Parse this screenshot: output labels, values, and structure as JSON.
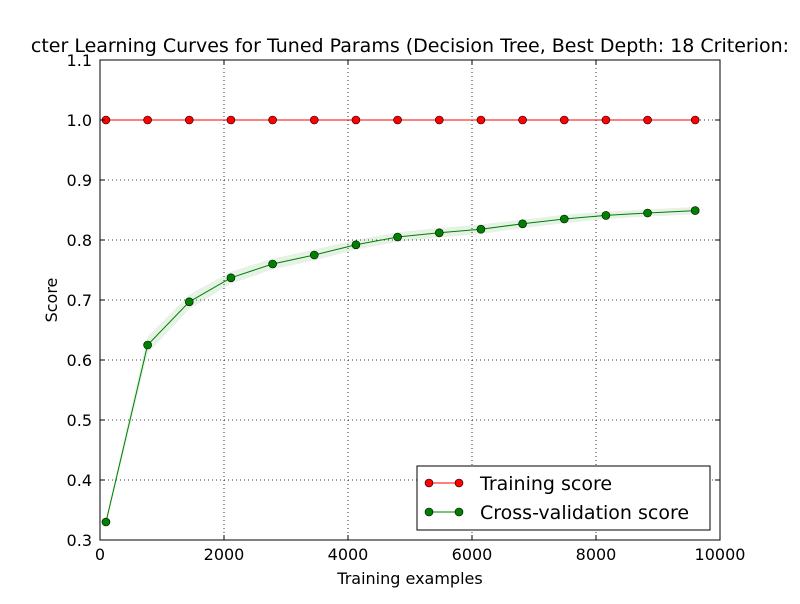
{
  "chart_data": {
    "type": "line",
    "title": "cter Learning Curves for Tuned Params (Decision Tree, Best Depth: 18 Criterion:",
    "xlabel": "Training examples",
    "ylabel": "Score",
    "xlim": [
      0,
      10000
    ],
    "ylim": [
      0.3,
      1.1
    ],
    "x_ticks": [
      "0",
      "2000",
      "4000",
      "6000",
      "8000",
      "10000"
    ],
    "y_ticks": [
      "0.3",
      "0.4",
      "0.5",
      "0.6",
      "0.7",
      "0.8",
      "0.9",
      "1.0",
      "1.1"
    ],
    "grid": true,
    "legend_position": "bottom-right",
    "x": [
      96,
      768,
      1440,
      2112,
      2784,
      3456,
      4128,
      4800,
      5472,
      6144,
      6816,
      7488,
      8160,
      8832,
      9600
    ],
    "series": [
      {
        "name": "Training score",
        "color": "#ff0000",
        "values": [
          1.0,
          1.0,
          1.0,
          1.0,
          1.0,
          1.0,
          1.0,
          1.0,
          1.0,
          1.0,
          1.0,
          1.0,
          1.0,
          1.0,
          1.0
        ],
        "band": [
          0.0,
          0.0,
          0.0,
          0.0,
          0.0,
          0.0,
          0.0,
          0.0,
          0.0,
          0.0,
          0.0,
          0.0,
          0.0,
          0.0,
          0.0
        ]
      },
      {
        "name": "Cross-validation score",
        "color": "#008000",
        "values": [
          0.33,
          0.625,
          0.697,
          0.737,
          0.76,
          0.775,
          0.792,
          0.805,
          0.812,
          0.818,
          0.827,
          0.835,
          0.841,
          0.845,
          0.849
        ],
        "band": [
          0.006,
          0.014,
          0.012,
          0.01,
          0.009,
          0.009,
          0.008,
          0.008,
          0.008,
          0.008,
          0.007,
          0.007,
          0.006,
          0.006,
          0.006
        ]
      }
    ]
  }
}
